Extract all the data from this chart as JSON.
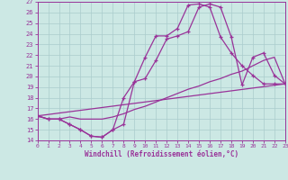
{
  "xlabel": "Windchill (Refroidissement éolien,°C)",
  "xlim": [
    0,
    23
  ],
  "ylim": [
    14,
    27
  ],
  "xticks": [
    0,
    1,
    2,
    3,
    4,
    5,
    6,
    7,
    8,
    9,
    10,
    11,
    12,
    13,
    14,
    15,
    16,
    17,
    18,
    19,
    20,
    21,
    22,
    23
  ],
  "yticks": [
    14,
    15,
    16,
    17,
    18,
    19,
    20,
    21,
    22,
    23,
    24,
    25,
    26,
    27
  ],
  "background_color": "#cce8e4",
  "line_color": "#993399",
  "grid_color": "#aacccc",
  "line1_x": [
    0,
    1,
    2,
    3,
    4,
    5,
    6,
    7,
    8,
    9,
    10,
    11,
    12,
    13,
    14,
    15,
    16,
    17,
    18,
    19,
    20,
    21,
    22,
    23
  ],
  "line1_y": [
    16.3,
    16.0,
    16.0,
    15.5,
    15.0,
    14.4,
    14.3,
    15.0,
    15.5,
    19.5,
    21.8,
    23.8,
    23.8,
    24.5,
    26.7,
    26.8,
    26.5,
    23.7,
    22.2,
    21.0,
    20.1,
    19.3,
    19.3,
    19.3
  ],
  "line2_x": [
    0,
    1,
    2,
    3,
    4,
    5,
    6,
    7,
    8,
    9,
    10,
    11,
    12,
    13,
    14,
    15,
    16,
    17,
    18,
    19,
    20,
    21,
    22,
    23
  ],
  "line2_y": [
    16.3,
    16.0,
    16.0,
    15.5,
    15.0,
    14.4,
    14.3,
    15.0,
    18.0,
    19.5,
    19.8,
    21.5,
    23.5,
    23.8,
    24.2,
    26.5,
    26.8,
    26.5,
    23.7,
    19.2,
    21.8,
    22.2,
    20.1,
    19.3
  ],
  "line3_x": [
    0,
    1,
    2,
    3,
    4,
    5,
    6,
    7,
    8,
    9,
    10,
    11,
    12,
    13,
    14,
    15,
    16,
    17,
    18,
    19,
    20,
    21,
    22,
    23
  ],
  "line3_y": [
    16.3,
    16.0,
    16.0,
    16.2,
    16.0,
    16.0,
    16.0,
    16.2,
    16.5,
    16.9,
    17.2,
    17.6,
    18.0,
    18.4,
    18.8,
    19.1,
    19.5,
    19.8,
    20.2,
    20.5,
    21.0,
    21.5,
    21.8,
    19.3
  ],
  "line4_x": [
    0,
    23
  ],
  "line4_y": [
    16.3,
    19.3
  ],
  "line5_x": [
    0,
    23
  ],
  "line5_y": [
    16.3,
    19.3
  ]
}
